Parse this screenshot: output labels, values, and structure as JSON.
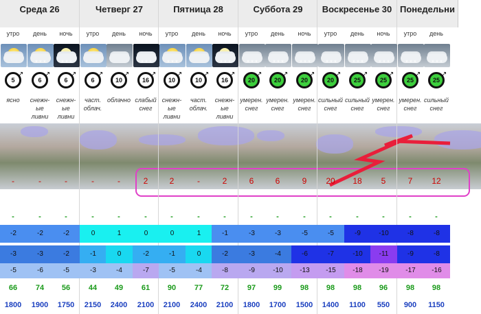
{
  "days": [
    {
      "name": "Среда 26",
      "parts": [
        "утро",
        "день",
        "ночь"
      ]
    },
    {
      "name": "Четверг 27",
      "parts": [
        "утро",
        "день",
        "ночь"
      ]
    },
    {
      "name": "Пятница 28",
      "parts": [
        "утро",
        "день",
        "ночь"
      ]
    },
    {
      "name": "Суббота 29",
      "parts": [
        "утро",
        "день",
        "ночь"
      ]
    },
    {
      "name": "Воскресенье 30",
      "parts": [
        "утро",
        "день",
        "ночь"
      ]
    },
    {
      "name": "Понедельни",
      "parts": [
        "утро",
        "день"
      ]
    }
  ],
  "columns": [
    {
      "icon": "sun-cloud-icon",
      "sky": "day",
      "wind": "5",
      "wind_color": "#ffffff",
      "desc": [
        "ясно"
      ],
      "precip": "-",
      "extra": "-",
      "t1": "-2",
      "t2": "-3",
      "t3": "-5",
      "c1": "#4a8ef0",
      "c2": "#3b7be0",
      "c3": "#9fc2f4",
      "hum": "66",
      "alt": "1800"
    },
    {
      "icon": "sun-cloud-snow-icon",
      "sky": "day",
      "wind": "6",
      "wind_color": "#ffffff",
      "desc": [
        "снежн-",
        "ые",
        "ливни"
      ],
      "precip": "-",
      "extra": "-",
      "t1": "-2",
      "t2": "-3",
      "t3": "-6",
      "c1": "#4a8ef0",
      "c2": "#3b7be0",
      "c3": "#9fc2f4",
      "hum": "74",
      "alt": "1900"
    },
    {
      "icon": "moon-cloud-snow-icon",
      "sky": "night",
      "wind": "6",
      "wind_color": "#ffffff",
      "desc": [
        "снежн-",
        "ые",
        "ливни"
      ],
      "precip": "-",
      "extra": "-",
      "t1": "-2",
      "t2": "-2",
      "t3": "-5",
      "c1": "#4a8ef0",
      "c2": "#3b7be0",
      "c3": "#9fc2f4",
      "hum": "56",
      "alt": "1750"
    },
    {
      "icon": "sun-cloud-icon",
      "sky": "day",
      "wind": "6",
      "wind_color": "#ffffff",
      "desc": [
        "част.",
        "облач."
      ],
      "precip": "-",
      "extra": "-",
      "t1": "0",
      "t2": "-1",
      "t3": "-3",
      "c1": "#19f0f0",
      "c2": "#35aef2",
      "c3": "#9fc2f4",
      "hum": "44",
      "alt": "2150"
    },
    {
      "icon": "cloud-icon",
      "sky": "grey",
      "wind": "10",
      "wind_color": "#ffffff",
      "desc": [
        "облачно"
      ],
      "precip": "-",
      "extra": "-",
      "t1": "1",
      "t2": "0",
      "t3": "-4",
      "c1": "#19f0f0",
      "c2": "#19d8f0",
      "c3": "#9fc2f4",
      "hum": "49",
      "alt": "2400"
    },
    {
      "icon": "cloud-snow-icon",
      "sky": "night",
      "wind": "16",
      "wind_color": "#ffffff",
      "desc": [
        "слабый",
        "снег"
      ],
      "precip": "2",
      "extra": "-",
      "t1": "0",
      "t2": "-2",
      "t3": "-7",
      "c1": "#19f0f0",
      "c2": "#35aef2",
      "c3": "#b9a8f0",
      "hum": "61",
      "alt": "2100"
    },
    {
      "icon": "sun-cloud-snow-icon",
      "sky": "day",
      "wind": "10",
      "wind_color": "#ffffff",
      "desc": [
        "снежн-",
        "ые",
        "ливни"
      ],
      "precip": "2",
      "extra": "-",
      "t1": "0",
      "t2": "-1",
      "t3": "-5",
      "c1": "#19f0f0",
      "c2": "#35aef2",
      "c3": "#9fc2f4",
      "hum": "90",
      "alt": "2100"
    },
    {
      "icon": "sun-cloud-icon",
      "sky": "day",
      "wind": "10",
      "wind_color": "#ffffff",
      "desc": [
        "част.",
        "облач."
      ],
      "precip": "-",
      "extra": "-",
      "t1": "1",
      "t2": "0",
      "t3": "-4",
      "c1": "#19f0f0",
      "c2": "#19d8f0",
      "c3": "#9fc2f4",
      "hum": "77",
      "alt": "2400"
    },
    {
      "icon": "moon-cloud-snow-icon",
      "sky": "night",
      "wind": "16",
      "wind_color": "#ffffff",
      "desc": [
        "снежн-",
        "ые",
        "ливни"
      ],
      "precip": "2",
      "extra": "-",
      "t1": "-1",
      "t2": "-2",
      "t3": "-8",
      "c1": "#4a8ef0",
      "c2": "#3b7be0",
      "c3": "#b9a8f0",
      "hum": "72",
      "alt": "2100"
    },
    {
      "icon": "cloud-snow-icon",
      "sky": "grey",
      "wind": "20",
      "wind_color": "#3dcf3d",
      "desc": [
        "умерен.",
        "снег"
      ],
      "precip": "6",
      "extra": "-",
      "t1": "-3",
      "t2": "-3",
      "t3": "-9",
      "c1": "#4a8ef0",
      "c2": "#3b7be0",
      "c3": "#b9a8f0",
      "hum": "97",
      "alt": "1800"
    },
    {
      "icon": "cloud-snow-icon",
      "sky": "grey",
      "wind": "20",
      "wind_color": "#3dcf3d",
      "desc": [
        "умерен.",
        "снег"
      ],
      "precip": "6",
      "extra": "-",
      "t1": "-3",
      "t2": "-4",
      "t3": "-10",
      "c1": "#4a8ef0",
      "c2": "#3b7be0",
      "c3": "#b9a8f0",
      "hum": "99",
      "alt": "1700"
    },
    {
      "icon": "cloud-snow-icon",
      "sky": "grey",
      "wind": "20",
      "wind_color": "#3dcf3d",
      "desc": [
        "умерен.",
        "снег"
      ],
      "precip": "9",
      "extra": "-",
      "t1": "-5",
      "t2": "-6",
      "t3": "-13",
      "c1": "#4a8ef0",
      "c2": "#1f32e6",
      "c3": "#c49cf0",
      "hum": "98",
      "alt": "1500"
    },
    {
      "icon": "cloud-snow-icon",
      "sky": "grey",
      "wind": "20",
      "wind_color": "#3dcf3d",
      "desc": [
        "сильный",
        "снег"
      ],
      "precip": "20",
      "extra": "-",
      "t1": "-5",
      "t2": "-7",
      "t3": "-15",
      "c1": "#4a8ef0",
      "c2": "#1f32e6",
      "c3": "#c49cf0",
      "hum": "98",
      "alt": "1400"
    },
    {
      "icon": "cloud-snow-icon",
      "sky": "grey",
      "wind": "25",
      "wind_color": "#3dcf3d",
      "desc": [
        "сильный",
        "снег"
      ],
      "precip": "18",
      "extra": "-",
      "t1": "-9",
      "t2": "-10",
      "t3": "-18",
      "c1": "#1f32e6",
      "c2": "#1f32e6",
      "c3": "#e08ce8",
      "hum": "98",
      "alt": "1100"
    },
    {
      "icon": "cloud-snow-icon",
      "sky": "grey",
      "wind": "25",
      "wind_color": "#3dcf3d",
      "desc": [
        "умерен.",
        "снег"
      ],
      "precip": "5",
      "extra": "-",
      "t1": "-10",
      "t2": "-11",
      "t3": "-19",
      "c1": "#1f32e6",
      "c2": "#8a3cf0",
      "c3": "#e08ce8",
      "hum": "96",
      "alt": "550"
    },
    {
      "icon": "cloud-snow-icon",
      "sky": "grey",
      "wind": "25",
      "wind_color": "#3dcf3d",
      "desc": [
        "умерен.",
        "снег"
      ],
      "precip": "7",
      "extra": "-",
      "t1": "-8",
      "t2": "-9",
      "t3": "-17",
      "c1": "#1f32e6",
      "c2": "#1f32e6",
      "c3": "#e08ce8",
      "hum": "98",
      "alt": "900"
    },
    {
      "icon": "cloud-snow-icon",
      "sky": "grey",
      "wind": "25",
      "wind_color": "#3dcf3d",
      "desc": [
        "сильный",
        "снег"
      ],
      "precip": "12",
      "extra": "-",
      "t1": "-8",
      "t2": "-8",
      "t3": "-16",
      "c1": "#1f32e6",
      "c2": "#1f32e6",
      "c3": "#e08ce8",
      "hum": "98",
      "alt": "1150"
    }
  ]
}
